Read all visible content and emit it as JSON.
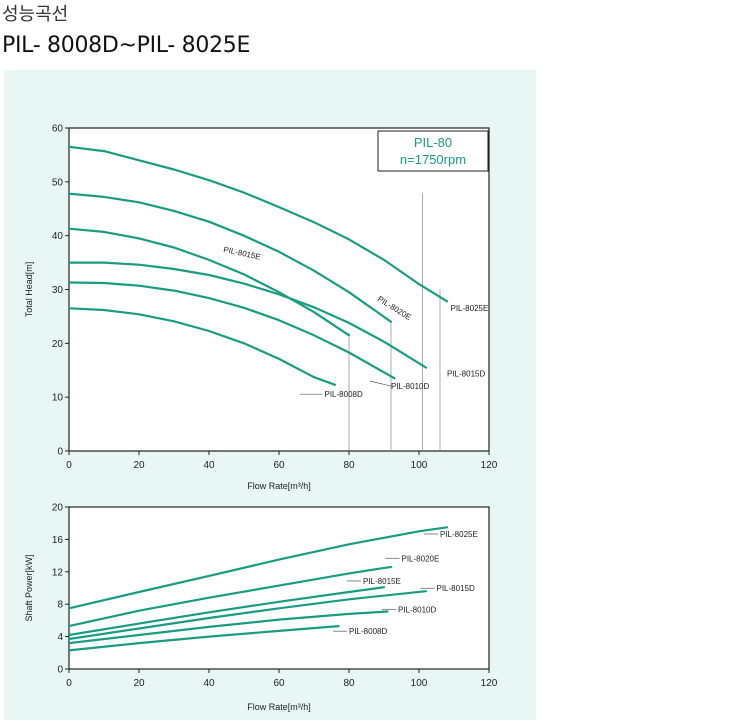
{
  "header": {
    "korean_title": "성능곡선",
    "model_range": "PIL- 8008D~PIL- 8025E"
  },
  "colors": {
    "curve": "#1a9c82",
    "panel_bg": "#e8f7f3",
    "axis": "#222222",
    "label_line": "#555555"
  },
  "chart_data": [
    {
      "type": "line",
      "xlabel": "Flow Rate[m³/h]",
      "ylabel": "Total Head[m]",
      "xlim": [
        0,
        120
      ],
      "ylim": [
        0,
        60
      ],
      "xticks": [
        0,
        20,
        40,
        60,
        80,
        100,
        120
      ],
      "yticks": [
        0,
        10,
        20,
        30,
        40,
        50,
        60
      ],
      "legend_box": {
        "line1": "PIL-80",
        "line2": "n=1750rpm",
        "placement": "top-right"
      },
      "series": [
        {
          "name": "PIL-8025E",
          "x": [
            0,
            10,
            20,
            30,
            40,
            50,
            60,
            70,
            80,
            90,
            100,
            108
          ],
          "y": [
            56.5,
            55.7,
            54,
            52.3,
            50.3,
            48,
            45.3,
            42.5,
            39.3,
            35.5,
            31,
            27.8
          ]
        },
        {
          "name": "PIL-8020E",
          "x": [
            0,
            10,
            20,
            30,
            40,
            50,
            60,
            70,
            80,
            92
          ],
          "y": [
            47.8,
            47.2,
            46.2,
            44.6,
            42.6,
            40,
            37,
            33.5,
            29.5,
            24
          ]
        },
        {
          "name": "PIL-8015E",
          "x": [
            0,
            10,
            20,
            30,
            40,
            50,
            60,
            70,
            80
          ],
          "y": [
            41.3,
            40.7,
            39.5,
            37.8,
            35.5,
            32.8,
            29.5,
            25.8,
            21.5
          ]
        },
        {
          "name": "PIL-8015D",
          "x": [
            0,
            10,
            20,
            30,
            40,
            50,
            60,
            70,
            80,
            90,
            102
          ],
          "y": [
            35,
            35,
            34.6,
            33.8,
            32.7,
            31.1,
            29.1,
            26.7,
            23.8,
            20.3,
            15.5
          ]
        },
        {
          "name": "PIL-8010D",
          "x": [
            0,
            10,
            20,
            30,
            40,
            50,
            60,
            70,
            80,
            93
          ],
          "y": [
            31.3,
            31.2,
            30.7,
            29.8,
            28.4,
            26.6,
            24.3,
            21.5,
            18.3,
            13.5
          ]
        },
        {
          "name": "PIL-8008D",
          "x": [
            0,
            10,
            20,
            30,
            40,
            50,
            60,
            70,
            76
          ],
          "y": [
            26.5,
            26.2,
            25.4,
            24.1,
            22.3,
            20,
            17.1,
            13.7,
            12.3
          ]
        }
      ],
      "labels": [
        {
          "text": "PIL-8015E",
          "x": 44,
          "y": 37,
          "rotate": 12
        },
        {
          "text": "PIL-8020E",
          "x": 88,
          "y": 28,
          "rotate": 32
        },
        {
          "text": "PIL-8025E",
          "x": 109,
          "y": 26
        },
        {
          "text": "PIL-8015D",
          "x": 108,
          "y": 13.8
        },
        {
          "text": "PIL-8010D",
          "x": 92,
          "y": 11.5,
          "line_to": [
            86,
            13
          ]
        },
        {
          "text": "PIL-8008D",
          "x": 73,
          "y": 10,
          "line_from": 66
        }
      ],
      "vertical_refs": [
        {
          "x": 80,
          "y_top": 22
        },
        {
          "x": 92,
          "y_top": 24
        },
        {
          "x": 101,
          "y_top": 48
        },
        {
          "x": 106,
          "y_top": 30
        }
      ]
    },
    {
      "type": "line",
      "xlabel": "Flow Rate[m³/h]",
      "ylabel": "Shaft Power[kW]",
      "xlim": [
        0,
        120
      ],
      "ylim": [
        0,
        20
      ],
      "xticks": [
        0,
        20,
        40,
        60,
        80,
        100,
        120
      ],
      "yticks": [
        0,
        4,
        8,
        12,
        16,
        20
      ],
      "series": [
        {
          "name": "PIL-8025E",
          "x": [
            0,
            20,
            40,
            60,
            80,
            100,
            108
          ],
          "y": [
            7.5,
            9.5,
            11.5,
            13.5,
            15.4,
            17,
            17.5
          ]
        },
        {
          "name": "PIL-8020E",
          "x": [
            0,
            20,
            40,
            60,
            80,
            92
          ],
          "y": [
            5.3,
            7.2,
            8.8,
            10.3,
            11.8,
            12.6
          ]
        },
        {
          "name": "PIL-8015E",
          "x": [
            0,
            20,
            40,
            60,
            80,
            90
          ],
          "y": [
            4.2,
            5.6,
            7,
            8.3,
            9.5,
            10.1
          ]
        },
        {
          "name": "PIL-8015D",
          "x": [
            0,
            20,
            40,
            60,
            80,
            102
          ],
          "y": [
            3.7,
            5,
            6.3,
            7.5,
            8.6,
            9.6
          ]
        },
        {
          "name": "PIL-8010D",
          "x": [
            0,
            20,
            40,
            60,
            80,
            91
          ],
          "y": [
            3.2,
            4.2,
            5.2,
            6.1,
            6.8,
            7.1
          ]
        },
        {
          "name": "PIL-8008D",
          "x": [
            0,
            20,
            40,
            60,
            77
          ],
          "y": [
            2.3,
            3.2,
            4,
            4.7,
            5.3
          ]
        }
      ],
      "labels": [
        {
          "text": "PIL-8025E",
          "x": 106,
          "y": 16.3
        },
        {
          "text": "PIL-8020E",
          "x": 95,
          "y": 13.3
        },
        {
          "text": "PIL-8015E",
          "x": 84,
          "y": 10.5
        },
        {
          "text": "PIL-8015D",
          "x": 105,
          "y": 9.6
        },
        {
          "text": "PIL-8010D",
          "x": 94,
          "y": 7
        },
        {
          "text": "PIL-8008D",
          "x": 80,
          "y": 4.3
        }
      ]
    }
  ]
}
